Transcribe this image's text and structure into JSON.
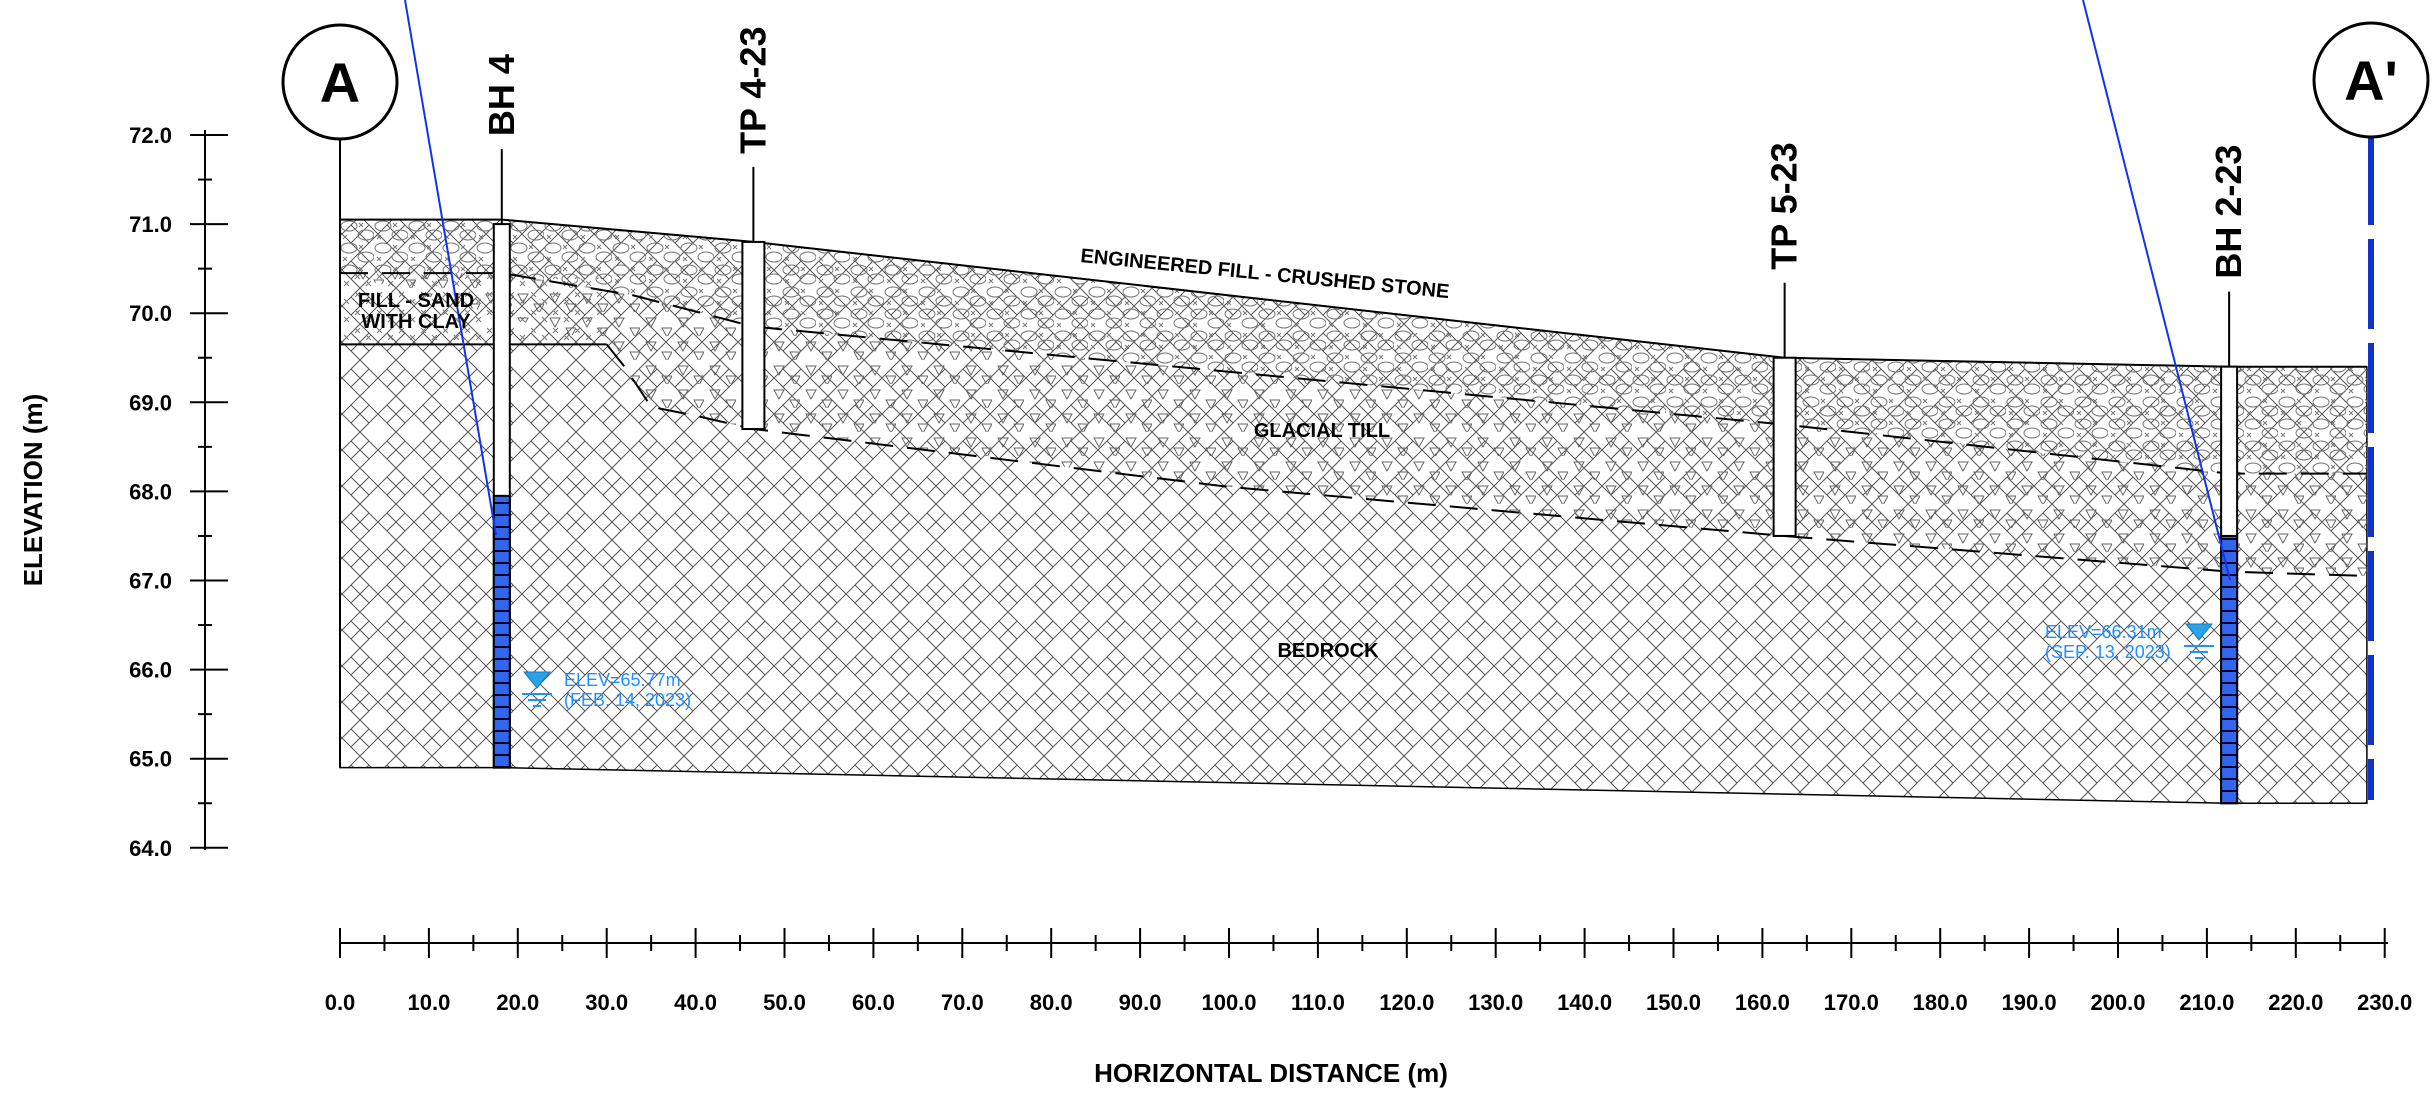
{
  "section": {
    "start_marker": "A",
    "end_marker": "A'"
  },
  "axes": {
    "ylabel": "ELEVATION (m)",
    "xlabel": "HORIZONTAL DISTANCE (m)",
    "y_tick_labels": [
      "72.0",
      "71.0",
      "70.0",
      "69.0",
      "68.0",
      "67.0",
      "66.0",
      "65.0",
      "64.0"
    ],
    "x_tick_labels": [
      "0.0",
      "10.0",
      "20.0",
      "30.0",
      "40.0",
      "50.0",
      "60.0",
      "70.0",
      "80.0",
      "90.0",
      "100.0",
      "110.0",
      "120.0",
      "130.0",
      "140.0",
      "150.0",
      "160.0",
      "170.0",
      "180.0",
      "190.0",
      "200.0",
      "210.0",
      "220.0",
      "230.0"
    ]
  },
  "layers": {
    "fill_crushed_stone": "ENGINEERED FILL - CRUSHED STONE",
    "fill_sand_line1": "FILL - SAND",
    "fill_sand_line2": "WITH CLAY",
    "glacial_till": "GLACIAL TILL",
    "bedrock": "BEDROCK"
  },
  "boreholes": [
    {
      "label": "BH 4",
      "x": 18.2,
      "top": 71.0,
      "bottom": 64.9
    },
    {
      "label": "TP 4-23",
      "x": 46.5,
      "top": 70.8,
      "bottom": 68.7
    },
    {
      "label": "TP 5-23",
      "x": 162.5,
      "top": 69.5,
      "bottom": 67.5
    },
    {
      "label": "BH 2-23",
      "x": 212.5,
      "top": 69.4,
      "bottom": 64.5
    }
  ],
  "water_levels": [
    {
      "line1": "ELEV=65.77m",
      "line2": "(FEB. 14, 2023)",
      "elevation": 65.77
    },
    {
      "line1": "ELEV=66.31m",
      "line2": "(SEP. 13, 2023)",
      "elevation": 66.31
    }
  ],
  "colors": {
    "accent_blue": "#1e90ff",
    "screen_blue": "#2255ee",
    "section_line_blue": "#1133cc",
    "outline": "#000000"
  },
  "chart_data": {
    "type": "diagram",
    "ylim": [
      64.0,
      72.0
    ],
    "xlim": [
      0.0,
      230.0
    ],
    "ground_surface": [
      [
        0,
        71.05
      ],
      [
        18.2,
        71.05
      ],
      [
        46.5,
        70.8
      ],
      [
        162.5,
        69.5
      ],
      [
        212.5,
        69.4
      ],
      [
        228,
        69.4
      ]
    ],
    "fill_bottom": [
      [
        0,
        70.45
      ],
      [
        18.2,
        70.45
      ],
      [
        33,
        70.2
      ],
      [
        46.5,
        69.85
      ],
      [
        162.5,
        68.75
      ],
      [
        212.5,
        68.2
      ],
      [
        228,
        68.2
      ]
    ],
    "sand_bottom": [
      [
        0,
        69.65
      ],
      [
        18.2,
        69.65
      ],
      [
        30,
        69.65
      ]
    ],
    "till_bottom": [
      [
        30,
        69.65
      ],
      [
        32,
        69.4
      ],
      [
        35,
        68.95
      ],
      [
        40,
        68.85
      ],
      [
        46.5,
        68.7
      ],
      [
        100,
        68.05
      ],
      [
        162.5,
        67.5
      ],
      [
        212.5,
        67.1
      ],
      [
        228,
        67.05
      ]
    ],
    "bedrock_bottom": [
      [
        0,
        64.9
      ],
      [
        18.2,
        64.9
      ],
      [
        212.5,
        64.5
      ],
      [
        228,
        64.5
      ]
    ]
  }
}
